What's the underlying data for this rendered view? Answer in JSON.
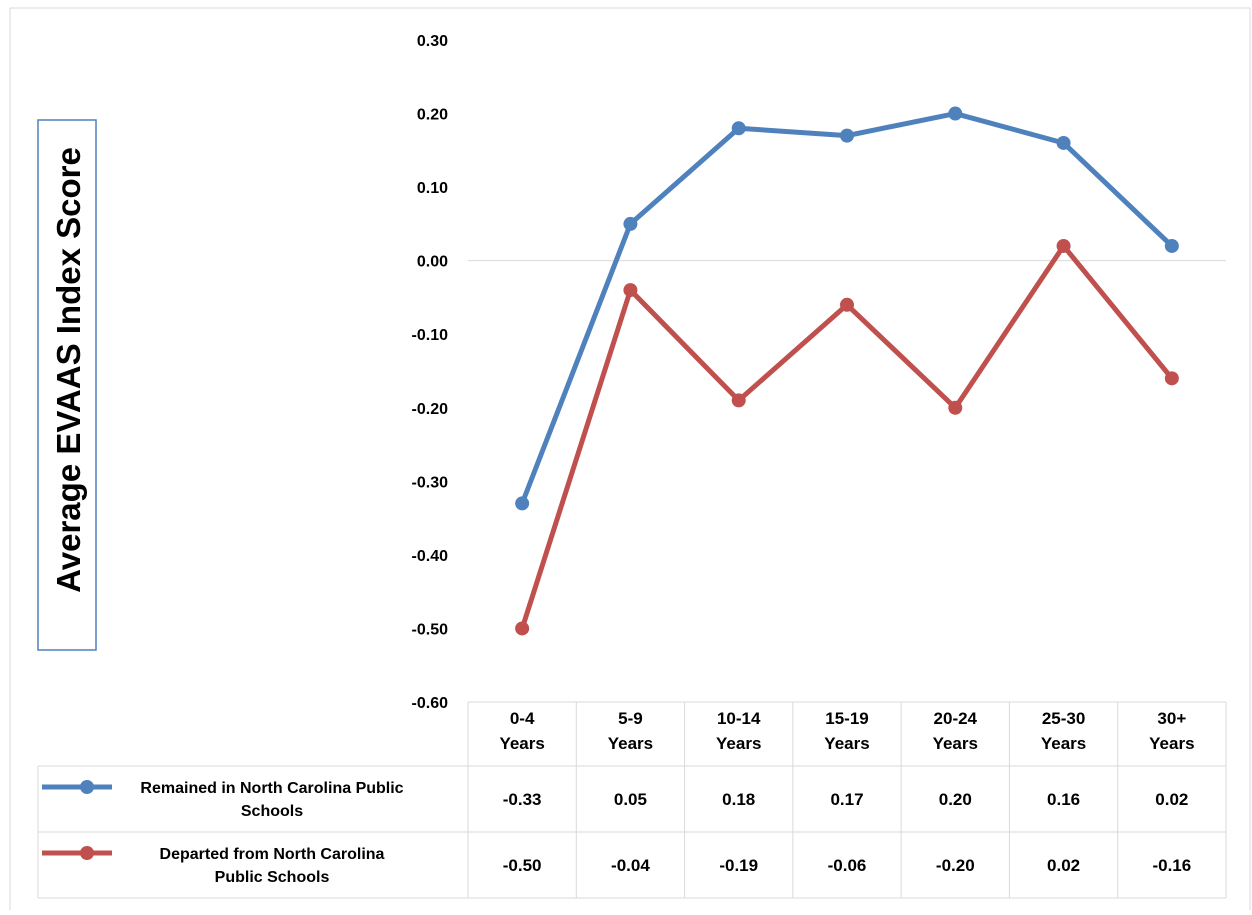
{
  "chart_data": {
    "type": "line",
    "ylabel": "Average EVAAS Index Score",
    "categories": [
      [
        "0-4",
        "Years"
      ],
      [
        "5-9",
        "Years"
      ],
      [
        "10-14",
        "Years"
      ],
      [
        "15-19",
        "Years"
      ],
      [
        "20-24",
        "Years"
      ],
      [
        "25-30",
        "Years"
      ],
      [
        "30+",
        "Years"
      ]
    ],
    "yticks": [
      "0.30",
      "0.20",
      "0.10",
      "0.00",
      "-0.10",
      "-0.20",
      "-0.30",
      "-0.40",
      "-0.50",
      "-0.60"
    ],
    "ylim": [
      -0.6,
      0.3
    ],
    "grid": false,
    "data_table": true,
    "series": [
      {
        "name": [
          "Remained in North Carolina Public",
          "Schools"
        ],
        "color": "#4f81bd",
        "values": [
          -0.33,
          0.05,
          0.18,
          0.17,
          0.2,
          0.16,
          0.02
        ],
        "labels": [
          "-0.33",
          "0.05",
          "0.18",
          "0.17",
          "0.20",
          "0.16",
          "0.02"
        ]
      },
      {
        "name": [
          "Departed from North Carolina",
          "Public Schools"
        ],
        "color": "#c0504d",
        "values": [
          -0.5,
          -0.04,
          -0.19,
          -0.06,
          -0.2,
          0.02,
          -0.16
        ],
        "labels": [
          "-0.50",
          "-0.04",
          "-0.19",
          "-0.06",
          "-0.20",
          "0.02",
          "-0.16"
        ]
      }
    ]
  }
}
